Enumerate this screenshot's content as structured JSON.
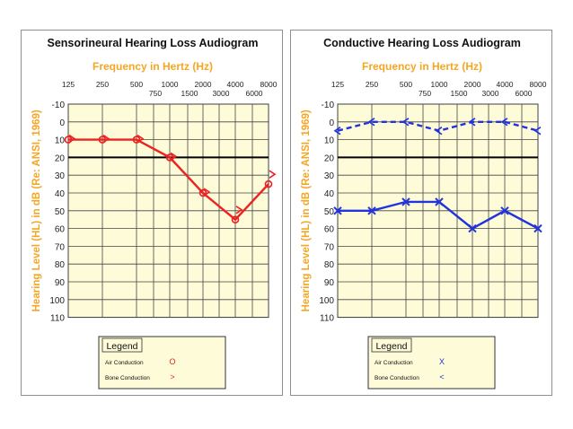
{
  "chart_data": [
    {
      "type": "line",
      "title": "Sensorineural Hearing Loss Audiogram",
      "xlabel": "Frequency in Hertz (Hz)",
      "ylabel": "Hearing Level (HL) in dB (Re: ANSI, 1969)",
      "x_ticks_top": [
        "125",
        "250",
        "500",
        "1000",
        "2000",
        "4000",
        "8000"
      ],
      "x_ticks_bottom": [
        "750",
        "1500",
        "3000",
        "6000"
      ],
      "y_ticks": [
        "-10",
        "0",
        "10",
        "20",
        "30",
        "40",
        "50",
        "60",
        "70",
        "80",
        "90",
        "100",
        "110"
      ],
      "ylim": [
        -10,
        110
      ],
      "grid": true,
      "reference_line": 20,
      "colors": {
        "accent": "#f5a623",
        "title": "#111111",
        "plot_bg": "#fdfbd8",
        "legend_bg": "#fdfbd8",
        "series": "#ee2222"
      },
      "legend": {
        "title": "Legend",
        "entries": [
          {
            "label": "Air Conduction",
            "symbol": "O"
          },
          {
            "label": "Bone Conduction",
            "symbol": ">"
          }
        ]
      },
      "series": [
        {
          "name": "Air Conduction",
          "marker": "circle",
          "line": "solid",
          "x": [
            "125",
            "250",
            "500",
            "1000",
            "2000",
            "4000",
            "8000"
          ],
          "values": [
            10,
            10,
            10,
            20,
            40,
            55,
            35
          ]
        },
        {
          "name": "Bone Conduction",
          "marker": ">",
          "line": "none",
          "x": [
            "125",
            "250",
            "500",
            "1000",
            "2000",
            "4000",
            "8000"
          ],
          "values": [
            10,
            10,
            10,
            20,
            40,
            50,
            30
          ]
        }
      ]
    },
    {
      "type": "line",
      "title": "Conductive Hearing Loss Audiogram",
      "xlabel": "Frequency in Hertz (Hz)",
      "ylabel": "Hearing Level (HL) in dB (Re: ANSI, 1969)",
      "x_ticks_top": [
        "125",
        "250",
        "500",
        "1000",
        "2000",
        "4000",
        "8000"
      ],
      "x_ticks_bottom": [
        "750",
        "1500",
        "3000",
        "6000"
      ],
      "y_ticks": [
        "-10",
        "0",
        "10",
        "20",
        "30",
        "40",
        "50",
        "60",
        "70",
        "80",
        "90",
        "100",
        "110"
      ],
      "ylim": [
        -10,
        110
      ],
      "grid": true,
      "reference_line": 20,
      "colors": {
        "accent": "#f5a623",
        "title": "#111111",
        "plot_bg": "#fdfbd8",
        "legend_bg": "#fdfbd8",
        "series": "#2233dd"
      },
      "legend": {
        "title": "Legend",
        "entries": [
          {
            "label": "Air Conduction",
            "symbol": "X"
          },
          {
            "label": "Bone Conduction",
            "symbol": "<"
          }
        ]
      },
      "series": [
        {
          "name": "Air Conduction",
          "marker": "x",
          "line": "solid",
          "x": [
            "125",
            "250",
            "500",
            "1000",
            "2000",
            "4000",
            "8000"
          ],
          "values": [
            50,
            50,
            45,
            45,
            60,
            50,
            60
          ]
        },
        {
          "name": "Bone Conduction",
          "marker": "<",
          "line": "dashed",
          "x": [
            "125",
            "250",
            "500",
            "1000",
            "2000",
            "4000",
            "8000"
          ],
          "values": [
            5,
            0,
            0,
            5,
            0,
            0,
            5
          ]
        }
      ]
    }
  ]
}
